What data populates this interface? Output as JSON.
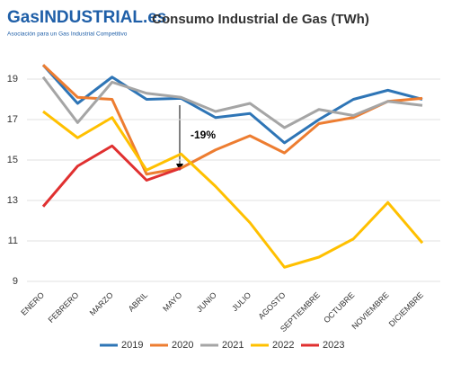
{
  "logo": {
    "name": "GasINDUSTRIAL.es",
    "tagline": "Asociación para un Gas Industrial Competitivo"
  },
  "chart_data": {
    "type": "line",
    "title": "Consumo Industrial de Gas (TWh)",
    "categories": [
      "ENERO",
      "FEBRERO",
      "MARZO",
      "ABRIL",
      "MAYO",
      "JUNIO",
      "JULIO",
      "AGOSTO",
      "SEPTIEMBRE",
      "OCTUBRE",
      "NOVIEMBRE",
      "DICIEMBRE"
    ],
    "series": [
      {
        "name": "2019",
        "color": "#2e75b6",
        "values": [
          19.7,
          17.8,
          19.1,
          18.0,
          18.05,
          17.1,
          17.3,
          15.85,
          17.0,
          18.0,
          18.45,
          18.0
        ]
      },
      {
        "name": "2020",
        "color": "#ed7d31",
        "values": [
          19.7,
          18.1,
          18.0,
          14.3,
          14.6,
          15.5,
          16.2,
          15.35,
          16.8,
          17.1,
          17.9,
          18.05
        ]
      },
      {
        "name": "2021",
        "color": "#a5a5a5",
        "values": [
          19.1,
          16.85,
          18.85,
          18.3,
          18.1,
          17.4,
          17.8,
          16.6,
          17.5,
          17.2,
          17.9,
          17.7
        ]
      },
      {
        "name": "2022",
        "color": "#ffc000",
        "values": [
          17.4,
          16.1,
          17.1,
          14.5,
          15.3,
          13.7,
          11.9,
          9.7,
          10.2,
          11.1,
          12.9,
          10.9
        ]
      },
      {
        "name": "2023",
        "color": "#e03030",
        "values": [
          12.7,
          14.7,
          15.7,
          14.0,
          14.6,
          null,
          null,
          null,
          null,
          null,
          null,
          null
        ]
      }
    ],
    "annotation": "-19%",
    "ylim": [
      9,
      20
    ],
    "yticks": [
      9,
      11,
      13,
      15,
      17,
      19
    ],
    "grid": true,
    "legend": "bottom"
  }
}
